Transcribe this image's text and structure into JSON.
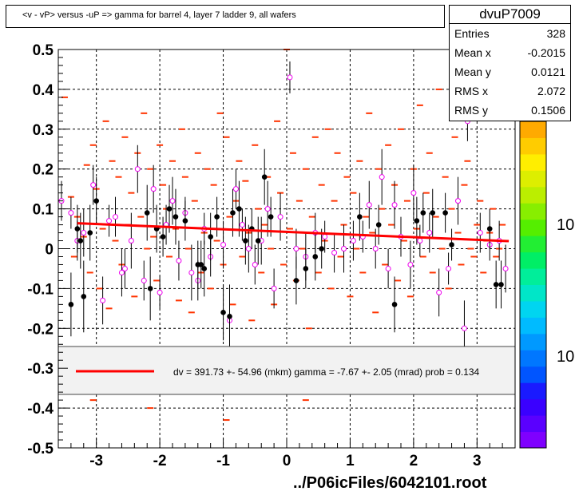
{
  "title": "<v - vP>       versus  -uP =>  gamma for barrel 4, layer 7 ladder 9, all wafers",
  "stats": {
    "name": "dvuP7009",
    "rows": [
      {
        "label": "Entries",
        "value": "328"
      },
      {
        "label": "Mean x",
        "value": "-0.2015"
      },
      {
        "label": "Mean y",
        "value": "0.0121"
      },
      {
        "label": "RMS x",
        "value": "2.072"
      },
      {
        "label": "RMS y",
        "value": "0.1506"
      }
    ]
  },
  "legend": {
    "text": "dv =  391.73 +- 54.96 (mkm) gamma =   -7.67 +-  2.05 (mrad) prob = 0.134",
    "line_color": "#ff0000"
  },
  "footer": "../P06icFiles/6042101.root",
  "colorbar": {
    "labels": [
      "10",
      "10"
    ],
    "colors": [
      "#7f00ff",
      "#5a00ff",
      "#3a00ff",
      "#1a1aff",
      "#0055ff",
      "#0077ff",
      "#0099ff",
      "#00bbff",
      "#00d5f0",
      "#00e6c8",
      "#00ee9a",
      "#00ee66",
      "#22ee33",
      "#55ee00",
      "#88ee00",
      "#bbee00",
      "#ddee00",
      "#ffee00",
      "#ffcc00",
      "#ffaa00"
    ]
  },
  "chart_data": {
    "type": "scatter",
    "xlim": [
      -3.6,
      3.6
    ],
    "ylim": [
      -0.5,
      0.5
    ],
    "x_ticks": [
      -3,
      -2,
      -1,
      0,
      1,
      2,
      3
    ],
    "y_ticks": [
      -0.5,
      -0.4,
      -0.3,
      -0.2,
      -0.1,
      0,
      0.1,
      0.2,
      0.3,
      0.4,
      0.5
    ],
    "y_tick_labels": [
      "-0.5",
      "-0.4",
      "-0.3",
      "-0.2",
      "-0.1",
      "0",
      "0.1",
      "0.2",
      "0.3",
      "0.4",
      "0.5"
    ],
    "grid": true,
    "fit_line": {
      "x": [
        -3.3,
        3.5
      ],
      "y": [
        0.064,
        0.019
      ],
      "color": "#ff0000"
    },
    "series": [
      {
        "marker": "dash",
        "color": "#ff3300",
        "points": [
          [
            -3.5,
            0.38
          ],
          [
            -3.4,
            0.13
          ],
          [
            -3.35,
            -0.02
          ],
          [
            -3.3,
            0.08
          ],
          [
            -3.2,
            0.03
          ],
          [
            -3.15,
            0.21
          ],
          [
            -3.1,
            -0.06
          ],
          [
            -3.05,
            0.26
          ],
          [
            -3.0,
            0.15
          ],
          [
            -2.95,
            -0.1
          ],
          [
            -2.9,
            0.05
          ],
          [
            -2.85,
            0.32
          ],
          [
            -2.8,
            -0.15
          ],
          [
            -2.75,
            0.22
          ],
          [
            -2.7,
            0.02
          ],
          [
            -2.65,
            0.18
          ],
          [
            -2.6,
            -0.04
          ],
          [
            -2.55,
            0.28
          ],
          [
            -2.5,
            0.06
          ],
          [
            -2.45,
            0.14
          ],
          [
            -2.4,
            -0.12
          ],
          [
            -2.35,
            0.24
          ],
          [
            -2.3,
            0.08
          ],
          [
            -2.25,
            0.34
          ],
          [
            -2.2,
            0.0
          ],
          [
            -2.15,
            0.2
          ],
          [
            -2.1,
            0.03
          ],
          [
            -2.05,
            -0.08
          ],
          [
            -2.0,
            0.26
          ],
          [
            -1.95,
            0.16
          ],
          [
            -1.9,
            0.1
          ],
          [
            -1.85,
            -0.02
          ],
          [
            -1.8,
            0.22
          ],
          [
            -1.75,
            0.05
          ],
          [
            -1.7,
            -0.13
          ],
          [
            -1.65,
            0.3
          ],
          [
            -1.6,
            0.18
          ],
          [
            -1.55,
            0.0
          ],
          [
            -1.5,
            -0.16
          ],
          [
            -1.45,
            0.12
          ],
          [
            -1.4,
            0.24
          ],
          [
            -1.35,
            -0.06
          ],
          [
            -1.3,
            0.04
          ],
          [
            -1.25,
            0.2
          ],
          [
            -1.2,
            -0.1
          ],
          [
            -1.15,
            0.16
          ],
          [
            -1.1,
            0.02
          ],
          [
            -1.05,
            0.34
          ],
          [
            -1.0,
            -0.04
          ],
          [
            -0.95,
            0.28
          ],
          [
            -0.9,
            0.08
          ],
          [
            -0.85,
            -0.14
          ],
          [
            -0.8,
            0.12
          ],
          [
            -0.75,
            0.22
          ],
          [
            -0.7,
            -0.02
          ],
          [
            -0.65,
            0.17
          ],
          [
            -0.6,
            0.04
          ],
          [
            -0.55,
            -0.18
          ],
          [
            -0.5,
            0.26
          ],
          [
            -0.45,
            0.1
          ],
          [
            -0.4,
            -0.06
          ],
          [
            -0.35,
            0.06
          ],
          [
            -0.3,
            0.18
          ],
          [
            -0.25,
            0.0
          ],
          [
            -0.2,
            -0.14
          ],
          [
            -0.15,
            0.32
          ],
          [
            -0.1,
            0.14
          ],
          [
            -0.05,
            -0.04
          ],
          [
            0.0,
            0.5
          ],
          [
            0.05,
            0.05
          ],
          [
            0.1,
            0.24
          ],
          [
            0.15,
            -0.08
          ],
          [
            0.2,
            0.12
          ],
          [
            0.25,
            0.0
          ],
          [
            0.3,
            0.2
          ],
          [
            0.35,
            -0.2
          ],
          [
            0.4,
            0.08
          ],
          [
            0.45,
            0.28
          ],
          [
            0.5,
            -0.06
          ],
          [
            0.55,
            0.16
          ],
          [
            0.6,
            0.02
          ],
          [
            0.65,
            0.3
          ],
          [
            0.7,
            -0.1
          ],
          [
            0.75,
            0.12
          ],
          [
            0.8,
            0.24
          ],
          [
            0.85,
            -0.02
          ],
          [
            0.9,
            0.06
          ],
          [
            0.95,
            0.18
          ],
          [
            1.0,
            -0.12
          ],
          [
            1.05,
            0.14
          ],
          [
            1.1,
            0.0
          ],
          [
            1.15,
            0.22
          ],
          [
            1.2,
            -0.06
          ],
          [
            1.25,
            0.08
          ],
          [
            1.3,
            0.34
          ],
          [
            1.35,
            0.04
          ],
          [
            1.4,
            -0.16
          ],
          [
            1.45,
            0.2
          ],
          [
            1.5,
            0.1
          ],
          [
            1.55,
            -0.04
          ],
          [
            1.6,
            0.26
          ],
          [
            1.65,
            0.06
          ],
          [
            1.7,
            0.16
          ],
          [
            1.75,
            -0.08
          ],
          [
            1.8,
            0.3
          ],
          [
            1.85,
            0.02
          ],
          [
            1.9,
            0.12
          ],
          [
            1.95,
            -0.12
          ],
          [
            2.0,
            0.2
          ],
          [
            2.05,
            0.05
          ],
          [
            2.1,
            0.36
          ],
          [
            2.15,
            -0.02
          ],
          [
            2.2,
            0.14
          ],
          [
            2.25,
            0.24
          ],
          [
            2.3,
            -0.06
          ],
          [
            2.35,
            0.08
          ],
          [
            2.4,
            0.4
          ],
          [
            2.45,
            0.0
          ],
          [
            2.5,
            0.18
          ],
          [
            2.55,
            -0.1
          ],
          [
            2.6,
            0.1
          ],
          [
            2.65,
            0.28
          ],
          [
            2.7,
            0.04
          ],
          [
            2.75,
            -0.04
          ],
          [
            2.8,
            0.16
          ],
          [
            2.85,
            0.22
          ],
          [
            2.9,
            0.0
          ],
          [
            2.95,
            -0.02
          ],
          [
            3.0,
            0.06
          ],
          [
            3.05,
            0.12
          ],
          [
            3.1,
            -0.06
          ],
          [
            3.15,
            0.02
          ],
          [
            3.2,
            0.04
          ],
          [
            3.25,
            0.1
          ],
          [
            3.3,
            -0.02
          ],
          [
            3.35,
            0.0
          ],
          [
            3.4,
            0.06
          ],
          [
            3.45,
            0.02
          ],
          [
            -1.55,
            -0.3
          ],
          [
            0.3,
            -0.38
          ],
          [
            -2.15,
            -0.4
          ],
          [
            -0.95,
            -0.43
          ],
          [
            -3.05,
            -0.38
          ]
        ]
      },
      {
        "marker": "open-circle",
        "color": "#ee00ee",
        "points": [
          [
            -3.55,
            0.12,
            0.05
          ],
          [
            -3.4,
            0.09,
            0.04
          ],
          [
            -3.3,
            0.02,
            0.05
          ],
          [
            -3.2,
            0.04,
            0.06
          ],
          [
            -3.05,
            0.16,
            0.05
          ],
          [
            -2.9,
            -0.13,
            0.06
          ],
          [
            -2.8,
            0.07,
            0.04
          ],
          [
            -2.7,
            0.08,
            0.05
          ],
          [
            -2.6,
            -0.06,
            0.06
          ],
          [
            -2.55,
            -0.05,
            0.05
          ],
          [
            -2.45,
            0.02,
            0.07
          ],
          [
            -2.35,
            0.2,
            0.06
          ],
          [
            -2.25,
            -0.08,
            0.05
          ],
          [
            -2.1,
            0.15,
            0.06
          ],
          [
            -2.0,
            -0.11,
            0.04
          ],
          [
            -1.9,
            0.06,
            0.05
          ],
          [
            -1.8,
            0.12,
            0.06
          ],
          [
            -1.7,
            -0.03,
            0.05
          ],
          [
            -1.6,
            0.09,
            0.04
          ],
          [
            -1.5,
            -0.06,
            0.07
          ],
          [
            -1.4,
            -0.08,
            0.05
          ],
          [
            -1.3,
            0.05,
            0.04
          ],
          [
            -1.2,
            -0.02,
            0.05
          ],
          [
            -1.0,
            0.01,
            0.06
          ],
          [
            -0.9,
            -0.18,
            0.07
          ],
          [
            -0.8,
            0.15,
            0.05
          ],
          [
            -0.7,
            0.06,
            0.04
          ],
          [
            -0.6,
            0.0,
            0.06
          ],
          [
            -0.5,
            -0.04,
            0.05
          ],
          [
            -0.4,
            0.02,
            0.06
          ],
          [
            -0.3,
            0.1,
            0.07
          ],
          [
            -0.2,
            -0.1,
            0.05
          ],
          [
            -0.1,
            0.08,
            0.06
          ],
          [
            0.05,
            0.43,
            0.04
          ],
          [
            0.15,
            0.0,
            0.05
          ],
          [
            0.3,
            -0.02,
            0.06
          ],
          [
            0.45,
            0.04,
            0.05
          ],
          [
            0.6,
            0.03,
            0.04
          ],
          [
            0.75,
            -0.01,
            0.05
          ],
          [
            0.9,
            0.0,
            0.06
          ],
          [
            1.05,
            0.02,
            0.05
          ],
          [
            1.2,
            0.03,
            0.04
          ],
          [
            1.3,
            0.11,
            0.06
          ],
          [
            1.4,
            0.0,
            0.05
          ],
          [
            1.5,
            0.18,
            0.07
          ],
          [
            1.6,
            -0.05,
            0.05
          ],
          [
            1.7,
            0.11,
            0.06
          ],
          [
            1.8,
            0.03,
            0.05
          ],
          [
            1.95,
            -0.04,
            0.06
          ],
          [
            2.0,
            0.14,
            0.07
          ],
          [
            2.1,
            0.02,
            0.04
          ],
          [
            2.25,
            0.04,
            0.05
          ],
          [
            2.4,
            -0.11,
            0.06
          ],
          [
            2.55,
            -0.05,
            0.04
          ],
          [
            2.7,
            0.12,
            0.06
          ],
          [
            2.8,
            -0.2,
            0.07
          ],
          [
            2.85,
            0.32,
            0.05
          ],
          [
            3.05,
            0.04,
            0.05
          ],
          [
            3.2,
            0.01,
            0.04
          ],
          [
            3.35,
            0.02,
            0.05
          ],
          [
            3.45,
            -0.05,
            0.06
          ]
        ]
      },
      {
        "marker": "filled-circle",
        "color": "#000000",
        "points": [
          [
            -3.4,
            -0.14,
            0.08
          ],
          [
            -3.3,
            0.05,
            0.06
          ],
          [
            -3.25,
            0.02,
            0.07
          ],
          [
            -3.2,
            -0.12,
            0.09
          ],
          [
            -3.1,
            0.04,
            0.07
          ],
          [
            -3.0,
            0.12,
            0.06
          ],
          [
            -2.2,
            0.09,
            0.07
          ],
          [
            -2.15,
            -0.1,
            0.08
          ],
          [
            -2.05,
            0.05,
            0.06
          ],
          [
            -1.95,
            0.03,
            0.05
          ],
          [
            -1.85,
            0.1,
            0.06
          ],
          [
            -1.75,
            0.08,
            0.07
          ],
          [
            -1.6,
            0.07,
            0.05
          ],
          [
            -1.4,
            -0.04,
            0.06
          ],
          [
            -1.35,
            -0.04,
            0.06
          ],
          [
            -1.3,
            -0.05,
            0.07
          ],
          [
            -1.2,
            0.03,
            0.06
          ],
          [
            -1.1,
            0.08,
            0.05
          ],
          [
            -1.0,
            -0.16,
            0.07
          ],
          [
            -0.9,
            -0.17,
            0.08
          ],
          [
            -0.85,
            0.09,
            0.06
          ],
          [
            -0.75,
            0.1,
            0.07
          ],
          [
            -0.65,
            0.02,
            0.06
          ],
          [
            -0.55,
            0.05,
            0.05
          ],
          [
            -0.45,
            0.02,
            0.06
          ],
          [
            -0.35,
            0.18,
            0.07
          ],
          [
            -0.25,
            0.08,
            0.05
          ],
          [
            0.15,
            -0.08,
            0.06
          ],
          [
            0.3,
            -0.05,
            0.05
          ],
          [
            0.45,
            -0.02,
            0.06
          ],
          [
            0.55,
            0.0,
            0.05
          ],
          [
            1.15,
            0.08,
            0.06
          ],
          [
            1.45,
            0.06,
            0.05
          ],
          [
            1.7,
            -0.14,
            0.07
          ],
          [
            2.05,
            0.07,
            0.06
          ],
          [
            2.15,
            0.09,
            0.05
          ],
          [
            2.3,
            0.09,
            0.06
          ],
          [
            2.5,
            0.09,
            0.05
          ],
          [
            2.6,
            0.01,
            0.04
          ],
          [
            3.2,
            0.05,
            0.05
          ],
          [
            3.3,
            -0.09,
            0.06
          ],
          [
            3.38,
            -0.09,
            0.06
          ]
        ]
      }
    ]
  }
}
